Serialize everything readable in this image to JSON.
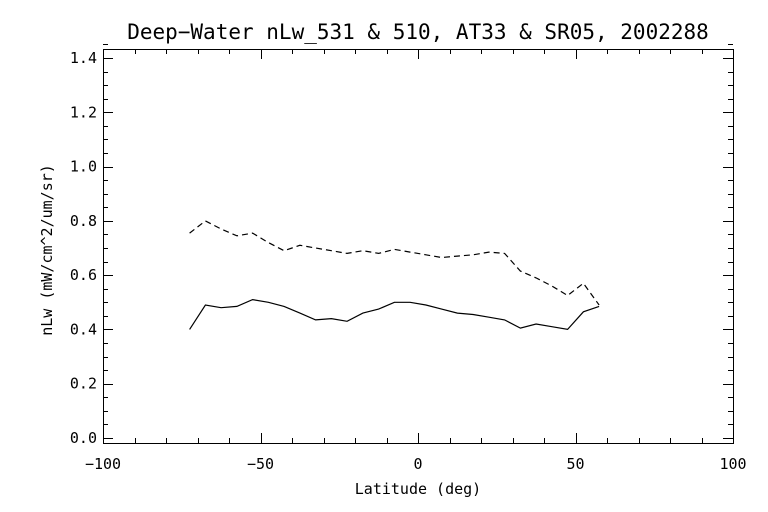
{
  "chart_data": {
    "type": "line",
    "title": "Deep−Water nLw_531 & 510, AT33 & SR05, 2002288",
    "xlabel": "Latitude (deg)",
    "ylabel": "nLw (mW/cm^2/um/sr)",
    "xlim": [
      -100,
      100
    ],
    "ylim": [
      0.0,
      1.5
    ],
    "x_ticks": [
      -100,
      -50,
      0,
      50,
      100
    ],
    "x_tick_labels": [
      "−100",
      "−50",
      "0",
      "50",
      "100"
    ],
    "y_ticks": [
      0.0,
      0.2,
      0.4,
      0.6,
      0.8,
      1.0,
      1.2,
      1.4
    ],
    "y_tick_labels": [
      "0.0",
      "0.2",
      "0.4",
      "0.6",
      "0.8",
      "1.0",
      "1.2",
      "1.4"
    ],
    "grid": false,
    "legend": false,
    "series": [
      {
        "line_style": "solid",
        "color": "#000000",
        "points": [
          [
            -72.5,
            0.4
          ],
          [
            -67.5,
            0.49
          ],
          [
            -62.5,
            0.48
          ],
          [
            -57.5,
            0.485
          ],
          [
            -52.5,
            0.51
          ],
          [
            -47.5,
            0.5
          ],
          [
            -42.5,
            0.485
          ],
          [
            -37.5,
            0.46
          ],
          [
            -32.5,
            0.435
          ],
          [
            -27.5,
            0.44
          ],
          [
            -22.5,
            0.43
          ],
          [
            -17.5,
            0.46
          ],
          [
            -12.5,
            0.475
          ],
          [
            -7.5,
            0.5
          ],
          [
            -2.5,
            0.5
          ],
          [
            2.5,
            0.49
          ],
          [
            7.5,
            0.475
          ],
          [
            12.5,
            0.46
          ],
          [
            17.5,
            0.455
          ],
          [
            22.5,
            0.445
          ],
          [
            27.5,
            0.435
          ],
          [
            32.5,
            0.405
          ],
          [
            37.5,
            0.42
          ],
          [
            42.5,
            0.41
          ],
          [
            47.5,
            0.4
          ],
          [
            52.5,
            0.465
          ],
          [
            57.5,
            0.485
          ]
        ]
      },
      {
        "line_style": "dashed",
        "color": "#000000",
        "points": [
          [
            -72.5,
            0.755
          ],
          [
            -67.5,
            0.8
          ],
          [
            -62.5,
            0.77
          ],
          [
            -57.5,
            0.745
          ],
          [
            -52.5,
            0.755
          ],
          [
            -47.5,
            0.72
          ],
          [
            -42.5,
            0.69
          ],
          [
            -37.5,
            0.71
          ],
          [
            -32.5,
            0.7
          ],
          [
            -27.5,
            0.69
          ],
          [
            -22.5,
            0.68
          ],
          [
            -17.5,
            0.69
          ],
          [
            -12.5,
            0.68
          ],
          [
            -7.5,
            0.695
          ],
          [
            -2.5,
            0.685
          ],
          [
            2.5,
            0.675
          ],
          [
            7.5,
            0.665
          ],
          [
            12.5,
            0.67
          ],
          [
            17.5,
            0.675
          ],
          [
            22.5,
            0.685
          ],
          [
            27.5,
            0.68
          ],
          [
            32.5,
            0.615
          ],
          [
            37.5,
            0.59
          ],
          [
            42.5,
            0.56
          ],
          [
            47.5,
            0.525
          ],
          [
            52.5,
            0.57
          ],
          [
            57.5,
            0.49
          ]
        ]
      }
    ]
  }
}
